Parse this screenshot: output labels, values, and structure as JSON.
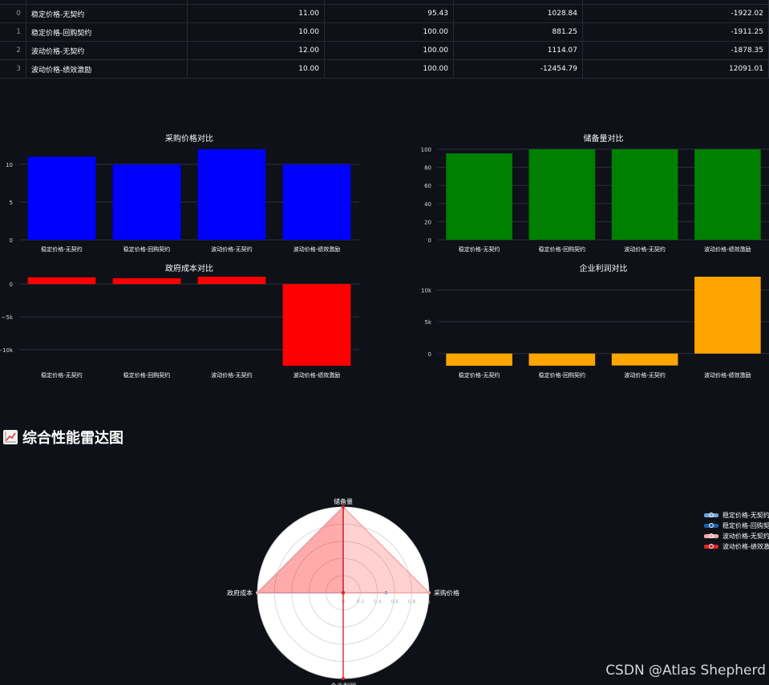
{
  "table": {
    "rows": [
      {
        "index": "0",
        "name": "稳定价格-无契约",
        "c1": "11.00",
        "c2": "95.43",
        "c3": "1028.84",
        "c4": "-1922.02"
      },
      {
        "index": "1",
        "name": "稳定价格-回购契约",
        "c1": "10.00",
        "c2": "100.00",
        "c3": "881.25",
        "c4": "-1911.25"
      },
      {
        "index": "2",
        "name": "波动价格-无契约",
        "c1": "12.00",
        "c2": "100.00",
        "c3": "1114.07",
        "c4": "-1878.35"
      },
      {
        "index": "3",
        "name": "波动价格-绩效激励",
        "c1": "10.00",
        "c2": "100.00",
        "c3": "-12454.79",
        "c4": "12091.01"
      }
    ]
  },
  "chart_data": [
    {
      "type": "bar",
      "title": "采购价格对比",
      "categories": [
        "稳定价格-无契约",
        "稳定价格-回购契约",
        "波动价格-无契约",
        "波动价格-绩效激励"
      ],
      "values": [
        11,
        10,
        12,
        10
      ],
      "ylim": [
        0,
        12
      ],
      "yticks": [
        0,
        5,
        10
      ],
      "ytick_labels": [
        "0",
        "5",
        "10"
      ],
      "color": "#0000ff"
    },
    {
      "type": "bar",
      "title": "储备量对比",
      "categories": [
        "稳定价格-无契约",
        "稳定价格-回购契约",
        "波动价格-无契约",
        "波动价格-绩效激励"
      ],
      "values": [
        95.43,
        100,
        100,
        100
      ],
      "ylim": [
        0,
        100
      ],
      "yticks": [
        0,
        20,
        40,
        60,
        80,
        100
      ],
      "ytick_labels": [
        "0",
        "20",
        "40",
        "60",
        "80",
        "100"
      ],
      "color": "#008000"
    },
    {
      "type": "bar",
      "title": "政府成本对比",
      "categories": [
        "稳定价格-无契约",
        "稳定价格-回购契约",
        "波动价格-无契约",
        "波动价格-绩效激励"
      ],
      "values": [
        1028.84,
        881.25,
        1114.07,
        -12454.79
      ],
      "ylim": [
        -12454.79,
        1114.07
      ],
      "yticks": [
        0,
        -5000,
        -10000
      ],
      "ytick_labels": [
        "0",
        "−5k",
        "−10k"
      ],
      "color": "#ff0000"
    },
    {
      "type": "bar",
      "title": "企业利润对比",
      "categories": [
        "稳定价格-无契约",
        "稳定价格-回购契约",
        "波动价格-无契约",
        "波动价格-绩效激励"
      ],
      "values": [
        -1922.02,
        -1911.25,
        -1878.35,
        12091.01
      ],
      "ylim": [
        -1922.02,
        12091.01
      ],
      "yticks": [
        0,
        5000,
        10000
      ],
      "ytick_labels": [
        "0",
        "5k",
        "10k"
      ],
      "color": "#ffa500"
    },
    {
      "type": "radar",
      "axes": [
        "采购价格",
        "储备量",
        "政府成本",
        "企业利润"
      ],
      "radial_ticks": [
        0,
        0.2,
        0.4,
        0.6,
        0.8,
        1
      ],
      "radial_tick_labels": [
        "0",
        "0.2",
        "0.4",
        "0.6",
        "0.8",
        "1"
      ],
      "series": [
        {
          "name": "稳定价格-无契约",
          "values": [
            0.5,
            0,
            1,
            0
          ],
          "color": "#6ea3d8"
        },
        {
          "name": "稳定价格-回购契约",
          "values": [
            0,
            1,
            1,
            0
          ],
          "color": "#1f5fa8"
        },
        {
          "name": "波动价格-无契约",
          "values": [
            1,
            1,
            1,
            0
          ],
          "color": "#f2a6a6"
        },
        {
          "name": "波动价格-绩效激励",
          "values": [
            0,
            1,
            0,
            1
          ],
          "color": "#e02424"
        }
      ]
    }
  ],
  "section": {
    "title": "综合性能雷达图",
    "icon": "chart-increasing-icon"
  },
  "legend": {
    "items": [
      "稳定价格-无契约",
      "稳定价格-回购契约",
      "波动价格-无契约",
      "波动价格-绩效激励"
    ]
  },
  "watermark": "CSDN @Atlas Shepherd"
}
